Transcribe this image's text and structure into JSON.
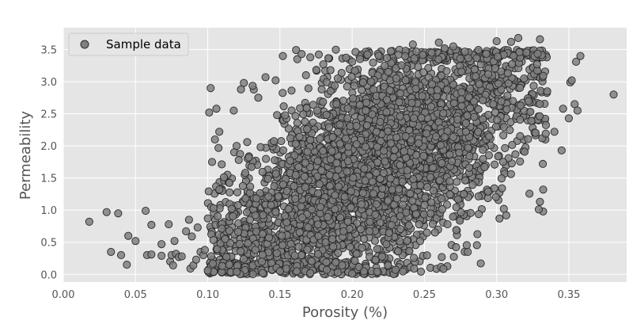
{
  "chart_data": {
    "type": "scatter",
    "xlabel": "Porosity (%)",
    "ylabel": "Permeability",
    "xlim": [
      0.0,
      0.39
    ],
    "ylim": [
      -0.12,
      3.84
    ],
    "xticks": [
      "0.00",
      "0.05",
      "0.10",
      "0.15",
      "0.20",
      "0.25",
      "0.30",
      "0.35"
    ],
    "yticks": [
      "0.0",
      "0.5",
      "1.0",
      "1.5",
      "2.0",
      "2.5",
      "3.0",
      "3.5"
    ],
    "grid": true,
    "legend": {
      "position": "top-left",
      "entries": [
        "Sample data"
      ]
    },
    "colors": {
      "background": "#e5e5e5",
      "grid": "#ffffff",
      "marker_fill": "#808080",
      "marker_edge": "#2a2a2a"
    },
    "series": [
      {
        "name": "Sample data",
        "points": [
          [
            0.018,
            0.82
          ],
          [
            0.03,
            0.97
          ],
          [
            0.033,
            0.35
          ],
          [
            0.038,
            0.95
          ],
          [
            0.04,
            0.3
          ],
          [
            0.044,
            0.15
          ],
          [
            0.045,
            0.6
          ],
          [
            0.05,
            0.52
          ],
          [
            0.057,
            0.99
          ],
          [
            0.058,
            0.3
          ],
          [
            0.061,
            0.31
          ],
          [
            0.061,
            0.77
          ],
          [
            0.068,
            0.29
          ],
          [
            0.068,
            0.47
          ],
          [
            0.073,
            0.78
          ],
          [
            0.074,
            0.2
          ],
          [
            0.075,
            0.3
          ],
          [
            0.076,
            0.14
          ],
          [
            0.077,
            0.52
          ],
          [
            0.078,
            0.32
          ],
          [
            0.08,
            0.27
          ],
          [
            0.082,
            0.28
          ],
          [
            0.085,
            0.67
          ],
          [
            0.087,
            0.85
          ],
          [
            0.088,
            0.09
          ],
          [
            0.089,
            0.59
          ],
          [
            0.09,
            0.14
          ],
          [
            0.092,
            0.23
          ],
          [
            0.093,
            0.73
          ],
          [
            0.095,
            0.35
          ],
          [
            0.097,
            0.3
          ],
          [
            0.098,
            0.38
          ],
          [
            0.1,
            0.06
          ],
          [
            0.101,
            2.52
          ],
          [
            0.102,
            2.9
          ],
          [
            0.103,
            1.75
          ],
          [
            0.105,
            2.1
          ],
          [
            0.106,
            2.58
          ],
          [
            0.108,
            2.22
          ],
          [
            0.11,
            1.3
          ],
          [
            0.112,
            0.55
          ],
          [
            0.118,
            2.55
          ],
          [
            0.12,
            2.0
          ],
          [
            0.123,
            2.88
          ],
          [
            0.125,
            2.98
          ],
          [
            0.135,
            2.75
          ],
          [
            0.14,
            3.07
          ],
          [
            0.147,
            3.02
          ],
          [
            0.152,
            3.4
          ],
          [
            0.162,
            3.35
          ],
          [
            0.165,
            3.43
          ],
          [
            0.168,
            3.1
          ],
          [
            0.171,
            3.38
          ],
          [
            0.18,
            3.27
          ],
          [
            0.185,
            3.18
          ],
          [
            0.19,
            3.05
          ],
          [
            0.2,
            3.31
          ],
          [
            0.213,
            3.0
          ],
          [
            0.225,
            3.15
          ],
          [
            0.232,
            3.42
          ],
          [
            0.237,
            2.15
          ],
          [
            0.242,
            3.58
          ],
          [
            0.255,
            3.45
          ],
          [
            0.26,
            3.61
          ],
          [
            0.264,
            3.52
          ],
          [
            0.27,
            3.55
          ],
          [
            0.3,
            3.63
          ],
          [
            0.31,
            3.62
          ],
          [
            0.315,
            3.68
          ],
          [
            0.33,
            3.66
          ],
          [
            0.335,
            2.85
          ],
          [
            0.34,
            2.22
          ],
          [
            0.345,
            1.93
          ],
          [
            0.346,
            2.58
          ],
          [
            0.35,
            2.43
          ],
          [
            0.351,
            2.99
          ],
          [
            0.352,
            3.02
          ],
          [
            0.354,
            2.65
          ],
          [
            0.355,
            3.31
          ],
          [
            0.356,
            2.55
          ],
          [
            0.358,
            3.4
          ],
          [
            0.381,
            2.8
          ],
          [
            0.33,
            1.13
          ],
          [
            0.305,
            1.02
          ],
          [
            0.289,
            0.17
          ],
          [
            0.302,
            0.87
          ],
          [
            0.28,
            0.35
          ],
          [
            0.262,
            0.27
          ],
          [
            0.23,
            0.07
          ],
          [
            0.2,
            0.01
          ],
          [
            0.19,
            0.03
          ],
          [
            0.171,
            0.02
          ],
          [
            0.15,
            0.05
          ],
          [
            0.138,
            0.02
          ],
          [
            0.12,
            0.04
          ],
          [
            0.11,
            0.13
          ],
          [
            0.104,
            1.03
          ],
          [
            0.108,
            1.32
          ],
          [
            0.115,
            0.68
          ],
          [
            0.126,
            1.58
          ],
          [
            0.133,
            0.92
          ],
          [
            0.142,
            1.21
          ],
          [
            0.148,
            2.48
          ],
          [
            0.157,
            1.77
          ],
          [
            0.163,
            0.43
          ],
          [
            0.173,
            2.64
          ],
          [
            0.178,
            1.05
          ],
          [
            0.186,
            1.92
          ],
          [
            0.194,
            0.67
          ],
          [
            0.203,
            2.31
          ],
          [
            0.209,
            1.46
          ],
          [
            0.216,
            0.93
          ],
          [
            0.224,
            2.72
          ],
          [
            0.231,
            1.18
          ],
          [
            0.238,
            0.52
          ],
          [
            0.246,
            2.04
          ],
          [
            0.252,
            1.36
          ],
          [
            0.259,
            2.87
          ],
          [
            0.266,
            0.78
          ],
          [
            0.273,
            2.41
          ],
          [
            0.281,
            1.66
          ],
          [
            0.288,
            2.96
          ],
          [
            0.294,
            1.29
          ],
          [
            0.299,
            3.21
          ],
          [
            0.307,
            2.57
          ],
          [
            0.313,
            1.87
          ],
          [
            0.319,
            3.05
          ],
          [
            0.324,
            2.39
          ],
          [
            0.328,
            3.27
          ],
          [
            0.332,
            1.72
          ]
        ],
        "cloud_summary": "dense cloud of several thousand samples following a rising trend from about (0.10, 0.3) to about (0.32, 3.1); the generated points below are illustrative"
      }
    ]
  }
}
